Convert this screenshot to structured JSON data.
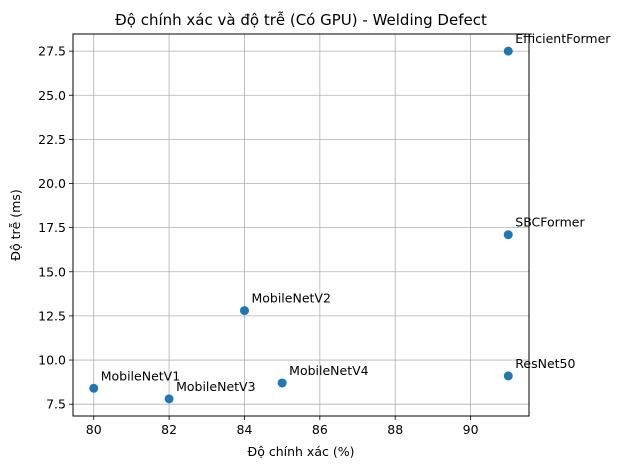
{
  "chart_data": {
    "type": "scatter",
    "title": "Độ chính xác và độ trễ (Có GPU) - Welding Defect",
    "xlabel": "Độ chính xác (%)",
    "ylabel": "Độ trễ (ms)",
    "xlim": [
      79.45,
      91.55
    ],
    "ylim": [
      6.83,
      28.47
    ],
    "xticks": [
      80,
      82,
      84,
      86,
      88,
      90
    ],
    "yticks": [
      7.5,
      10.0,
      12.5,
      15.0,
      17.5,
      20.0,
      22.5,
      25.0,
      27.5
    ],
    "xtick_labels": [
      "80",
      "82",
      "84",
      "86",
      "88",
      "90"
    ],
    "ytick_labels": [
      "7.5",
      "10.0",
      "12.5",
      "15.0",
      "17.5",
      "20.0",
      "22.5",
      "25.0",
      "27.5"
    ],
    "grid": true,
    "marker_color": "#1f77b4",
    "points": [
      {
        "label": "MobileNetV1",
        "x": 80,
        "y": 8.4
      },
      {
        "label": "MobileNetV3",
        "x": 82,
        "y": 7.8
      },
      {
        "label": "MobileNetV2",
        "x": 84,
        "y": 12.8
      },
      {
        "label": "MobileNetV4",
        "x": 85,
        "y": 8.7
      },
      {
        "label": "ResNet50",
        "x": 91,
        "y": 9.1
      },
      {
        "label": "SBCFormer",
        "x": 91,
        "y": 17.1
      },
      {
        "label": "EfficientFormer",
        "x": 91,
        "y": 27.5
      }
    ]
  }
}
